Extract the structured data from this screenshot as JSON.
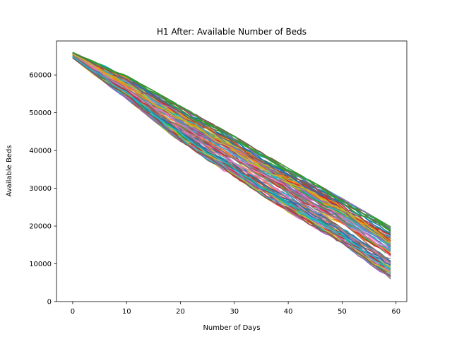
{
  "chart_data": {
    "type": "line",
    "title": "H1 After: Available Number of Beds",
    "xlabel": "Number of Days",
    "ylabel": "Available Beds",
    "xlim": [
      -3,
      62
    ],
    "ylim": [
      0,
      69000
    ],
    "xticks": [
      0,
      10,
      20,
      30,
      40,
      50,
      60
    ],
    "yticks": [
      0,
      10000,
      20000,
      30000,
      40000,
      50000,
      60000
    ],
    "grid": false,
    "legend": false,
    "x_range": [
      0,
      59
    ],
    "series_count": 100,
    "start_range": [
      64500,
      66000
    ],
    "end_range": [
      6200,
      19500
    ],
    "envelope": {
      "x": [
        0,
        10,
        20,
        30,
        40,
        50,
        59
      ],
      "upper": [
        66000,
        59500,
        51500,
        43500,
        35000,
        27000,
        19500
      ],
      "lower": [
        64500,
        54000,
        42500,
        33000,
        24000,
        15500,
        6200
      ]
    },
    "colors": [
      "#1f77b4",
      "#ff7f0e",
      "#2ca02c",
      "#d62728",
      "#9467bd",
      "#8c564b",
      "#e377c2",
      "#7f7f7f",
      "#bcbd22",
      "#17becf"
    ]
  }
}
